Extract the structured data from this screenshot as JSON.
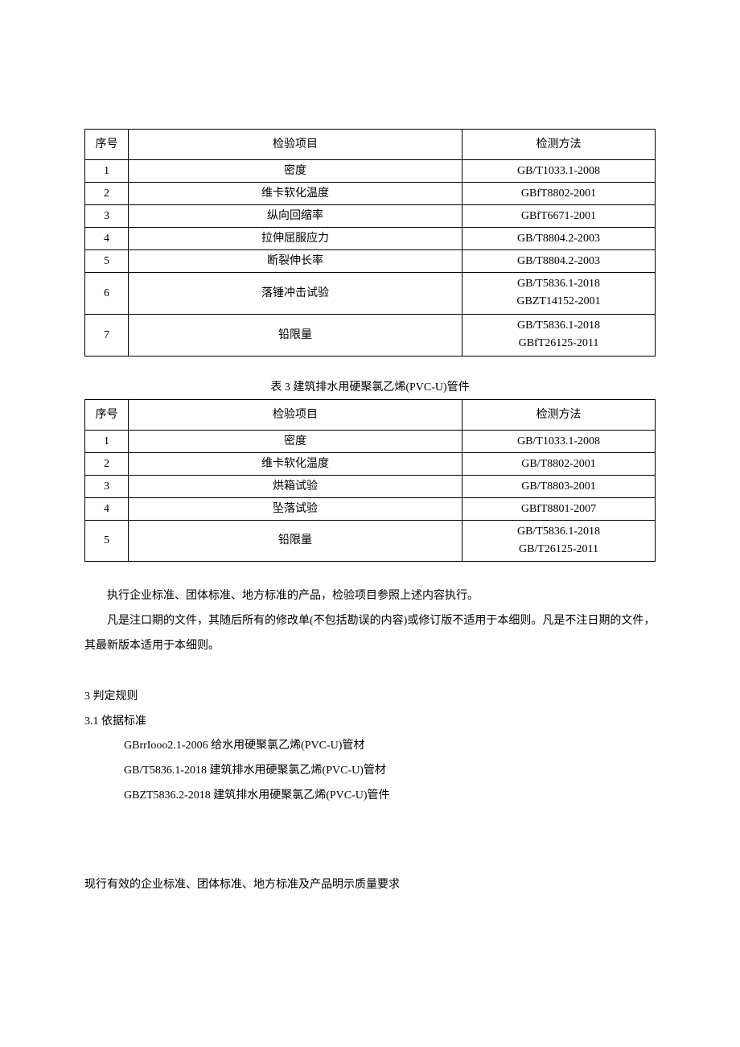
{
  "table2": {
    "headers": {
      "idx": "序号",
      "item": "检验项目",
      "method": "检测方法"
    },
    "rows": [
      {
        "idx": "1",
        "item": "密度",
        "method": "GB/T1033.1-2008"
      },
      {
        "idx": "2",
        "item": "维卡软化温度",
        "method": "GBfT8802-2001"
      },
      {
        "idx": "3",
        "item": "纵向回缩率",
        "method": "GBfT6671-2001"
      },
      {
        "idx": "4",
        "item": "拉伸屈服应力",
        "method": "GB/T8804.2-2003"
      },
      {
        "idx": "5",
        "item": "断裂伸长率",
        "method": "GB/T8804.2-2003"
      },
      {
        "idx": "6",
        "item": "落锤冲击试验",
        "method_a": "GB/T5836.1-2018",
        "method_b": "GBZT14152-2001"
      },
      {
        "idx": "7",
        "item": "铅限量",
        "method_a": "GB/T5836.1-2018",
        "method_b": "GBfT26125-2011"
      }
    ]
  },
  "table3": {
    "caption": "表 3 建筑排水用硬聚氯乙烯(PVC-U)管件",
    "headers": {
      "idx": "序号",
      "item": "检验项目",
      "method": "检测方法"
    },
    "rows": [
      {
        "idx": "1",
        "item": "密度",
        "method": "GB/T1033.1-2008"
      },
      {
        "idx": "2",
        "item": "维卡软化温度",
        "method": "GB/T8802-2001"
      },
      {
        "idx": "3",
        "item": "烘箱试验",
        "method": "GB/T8803-2001"
      },
      {
        "idx": "4",
        "item": "坠落试验",
        "method": "GBfT8801-2007"
      },
      {
        "idx": "5",
        "item": "铅限量",
        "method_a": "GB/T5836.1-2018",
        "method_b": "GB/T26125-2011"
      }
    ]
  },
  "paragraphs": {
    "p1": "执行企业标准、团体标准、地方标准的产品，检验项目参照上述内容执行。",
    "p2": "凡是注口期的文件，其随后所有的修改单(不包括勘误的内容)或修订版不适用于本细则。凡是不注日期的文件，其最新版本适用于本细则。"
  },
  "sections": {
    "s3": "3 判定规则",
    "s3_1": "3.1  依据标准",
    "refs": {
      "r1": "GBrrIooo2.1-2006 给水用硬聚氯乙烯(PVC-U)管材",
      "r2": "GB/T5836.1-2018 建筑排水用硬聚氯乙烯(PVC-U)管材",
      "r3": "GBZT5836.2-2018 建筑排水用硬聚氯乙烯(PVC-U)管件"
    }
  },
  "bottom": "现行有效的企业标准、团体标准、地方标准及产品明示质量要求"
}
